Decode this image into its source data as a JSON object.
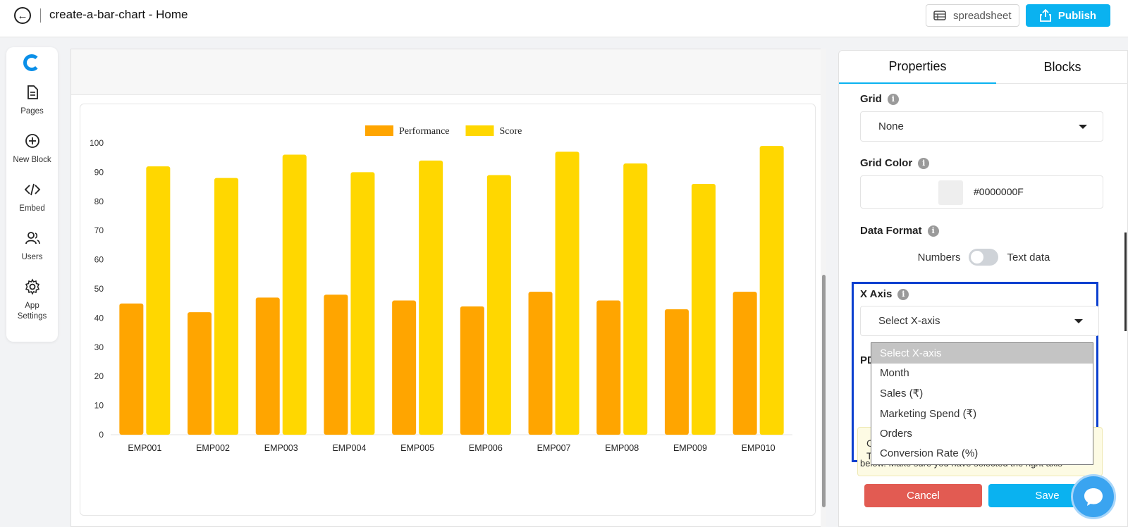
{
  "header": {
    "app_title": "create-a-bar-chart - Home",
    "spreadsheet_label": "spreadsheet",
    "publish_label": "Publish"
  },
  "sidebar": {
    "items": [
      {
        "label": "Pages",
        "icon": "pages-icon"
      },
      {
        "label": "New Block",
        "icon": "plus-circle-icon"
      },
      {
        "label": "Embed",
        "icon": "code-icon"
      },
      {
        "label": "Users",
        "icon": "users-icon"
      },
      {
        "label": "App Settings",
        "icon": "gear-icon"
      }
    ]
  },
  "panel": {
    "tabs": [
      "Properties",
      "Blocks"
    ],
    "grid_label": "Grid",
    "grid_value": "None",
    "grid_color_label": "Grid Color",
    "grid_color_value": "#0000000F",
    "data_format_label": "Data Format",
    "data_format_left": "Numbers",
    "data_format_right": "Text data",
    "x_axis_label": "X Axis",
    "x_axis_value": "Select X-axis",
    "partial_label": "PD",
    "note_line": "below. Make sure you have selected the right axis",
    "note_fragment_1": "C",
    "note_fragment_2": "T",
    "cancel_label": "Cancel",
    "save_label": "Save",
    "dropdown_options": [
      "Select X-axis",
      "Month",
      "Sales (₹)",
      "Marketing Spend (₹)",
      "Orders",
      "Conversion Rate (%)"
    ]
  },
  "colors": {
    "performance": "#FFA500",
    "score": "#FFD700",
    "accent": "#0AB2F0"
  },
  "chart_data": {
    "type": "bar",
    "title": "",
    "xlabel": "",
    "ylabel": "",
    "ylim": [
      0,
      100
    ],
    "yticks": [
      0,
      10,
      20,
      30,
      40,
      50,
      60,
      70,
      80,
      90,
      100
    ],
    "categories": [
      "EMP001",
      "EMP002",
      "EMP003",
      "EMP004",
      "EMP005",
      "EMP006",
      "EMP007",
      "EMP008",
      "EMP009",
      "EMP010"
    ],
    "series": [
      {
        "name": "Performance",
        "color": "#FFA500",
        "values": [
          45,
          42,
          47,
          48,
          46,
          44,
          49,
          46,
          43,
          49
        ]
      },
      {
        "name": "Score",
        "color": "#FFD700",
        "values": [
          92,
          88,
          96,
          90,
          94,
          89,
          97,
          93,
          86,
          99
        ]
      }
    ],
    "legend": "top-center"
  }
}
